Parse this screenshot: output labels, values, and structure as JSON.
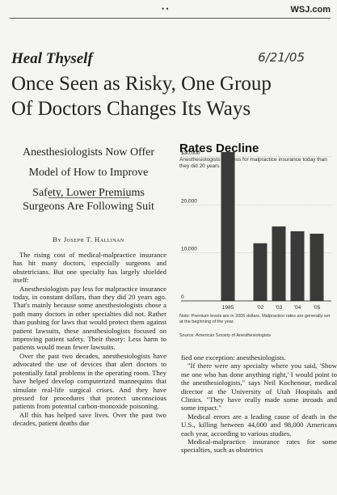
{
  "masthead": {
    "marks": "• •",
    "site": "WSJ.com"
  },
  "kicker": "Heal Thyself",
  "date": "6/21/05",
  "headline": [
    "Once Seen as Risky, One Group",
    "Of Doctors Changes Its Ways"
  ],
  "deck": [
    "Anesthesiologists Now Offer",
    "Model of How to Improve",
    "Safety, Lower Premiums"
  ],
  "subdeck": "Surgeons Are Following Suit",
  "byline": "By Joseph T. Hallinan",
  "left_column": [
    "The rising cost of medical-malpractice insurance has hit many doctors, especially surgeons and obstetricians. But one specialty has largely shielded itself:",
    "Anesthesiologists pay less for malpractice insurance today, in constant dollars, than they did 20 years ago. That's mainly because some anesthesiologists chose a path many doctors in other specialties did not. Rather than pushing for laws that would protect them against patient lawsuits, these anesthesiologists focused on improving patient safety. Their theory: Less harm to patients would mean fewer lawsuits.",
    "Over the past two decades, anesthesiologists have advocated the use of devices that alert doctors to potentially fatal problems in the operating room. They have helped develop computerized mannequins that simulate real-life surgical crises. And they have pressed for procedures that protect unconscious patients from potential carbon-monoxide poisoning.",
    "All this has helped save lives. Over the past two decades, patient deaths due"
  ],
  "right_column": [
    "fied one exception: anesthesiologists.",
    "\"If there were any specialty where you said, 'Show me one who has done anything right,' I would point to the anesthesiologists,\" says Neil Kochenour, medical director at the University of Utah Hospitals and Clinics. \"They have really made some inroads and some impact.\"",
    "Medical errors are a leading cause of death in the U.S., killing between 44,000 and 98,000 Americans each year, according to various studies.",
    "Medical-malpractice insurance rates for some specialties, such as obstetrics"
  ],
  "chart_data": {
    "type": "bar",
    "title": "Rates Decline",
    "subtitle": "Anesthesiologists pay less for malpractice insurance today than they did 20 years ago.",
    "categories": [
      "1985",
      "'02",
      "'03",
      "'04",
      "'05"
    ],
    "values": [
      31000,
      12000,
      15500,
      14500,
      14000
    ],
    "color": "#3a3a3a",
    "ylim": [
      0,
      32000
    ],
    "yticks": [
      {
        "value": 30000,
        "label": "$30,000"
      },
      {
        "value": 20000,
        "label": "20,000"
      },
      {
        "value": 10000,
        "label": "10,000"
      },
      0
    ],
    "grid": true,
    "note": "Note: Premium levels are in 2005 dollars. Malpractice rates are generally set at the beginning of the year.",
    "source": "Source: American Society of Anesthesiologists"
  }
}
